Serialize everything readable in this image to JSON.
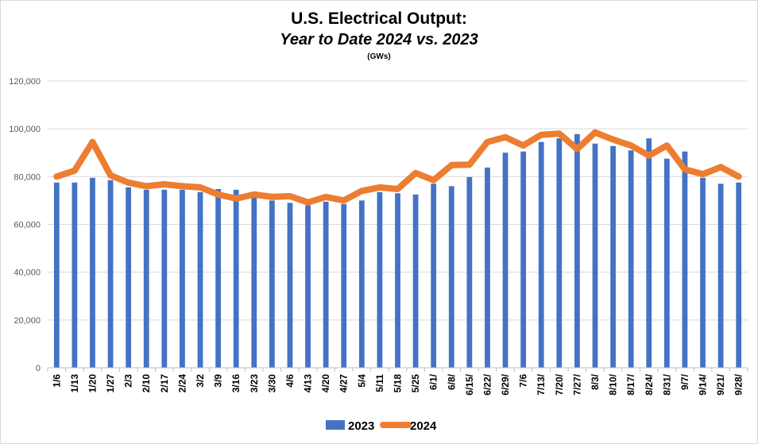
{
  "chart_data": {
    "type": "bar+line",
    "title_line1": "U.S. Electrical Output:",
    "title_line2": "Year to Date 2024 vs. 2023",
    "units": "(GWs)",
    "categories": [
      "1/6",
      "1/13",
      "1/20",
      "1/27",
      "2/3",
      "2/10",
      "2/17",
      "2/24",
      "3/2",
      "3/9",
      "3/16",
      "3/23",
      "3/30",
      "4/6",
      "4/13",
      "4/20",
      "4/27",
      "5/4",
      "5/11",
      "5/18",
      "5/25",
      "6/1/",
      "6/8/",
      "6/15/",
      "6/22/",
      "6/29/",
      "7/6",
      "7/13/",
      "7/20/",
      "7/27/",
      "8/3/",
      "8/10/",
      "8/17/",
      "8/24/",
      "8/31/",
      "9/7/",
      "9/14/",
      "9/21/",
      "9/28/"
    ],
    "series": [
      {
        "name": "2023",
        "type": "bar",
        "color": "#4472c4",
        "values": [
          77500,
          77500,
          79500,
          78500,
          75500,
          74500,
          74500,
          74500,
          73500,
          74800,
          74500,
          72000,
          70000,
          69000,
          68000,
          69500,
          68500,
          70000,
          73500,
          73000,
          72500,
          77000,
          76000,
          79800,
          83800,
          90000,
          90500,
          94500,
          96000,
          97800,
          93800,
          92800,
          91000,
          96000,
          87500,
          90500,
          79500,
          77000,
          77500
        ]
      },
      {
        "name": "2024",
        "type": "line",
        "color": "#ed7d31",
        "values": [
          80000,
          82500,
          94500,
          80500,
          77500,
          76000,
          76800,
          76000,
          75500,
          72500,
          70800,
          72500,
          71500,
          71800,
          69200,
          71500,
          70000,
          74000,
          75500,
          74800,
          81500,
          78500,
          84800,
          85000,
          94500,
          96500,
          93000,
          97500,
          98000,
          91500,
          98500,
          95500,
          93000,
          88800,
          93000,
          83000,
          81000,
          84000,
          80000
        ]
      }
    ],
    "ylim": [
      0,
      120000
    ],
    "yticks": [
      0,
      20000,
      40000,
      60000,
      80000,
      100000,
      120000
    ],
    "ytick_labels": [
      "0",
      "20,000",
      "40,000",
      "60,000",
      "80,000",
      "100,000",
      "120,000"
    ],
    "grid": true,
    "legend": "bottom-center"
  }
}
